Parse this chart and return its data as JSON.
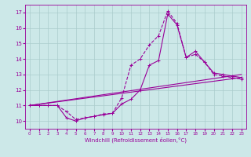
{
  "xlabel": "Windchill (Refroidissement éolien,°C)",
  "bg_color": "#cce8e8",
  "grid_color": "#aacccc",
  "line_color": "#990099",
  "xlim": [
    -0.5,
    23.5
  ],
  "ylim": [
    9.5,
    17.5
  ],
  "xticks": [
    0,
    1,
    2,
    3,
    4,
    5,
    6,
    7,
    8,
    9,
    10,
    11,
    12,
    13,
    14,
    15,
    16,
    17,
    18,
    19,
    20,
    21,
    22,
    23
  ],
  "yticks": [
    10,
    11,
    12,
    13,
    14,
    15,
    16,
    17
  ],
  "line1_x": [
    0,
    1,
    2,
    3,
    4,
    5,
    6,
    7,
    8,
    9,
    10,
    11,
    12,
    13,
    14,
    15,
    16,
    17,
    18,
    19,
    20,
    21,
    22,
    23
  ],
  "line1_y": [
    11.0,
    11.0,
    11.0,
    11.0,
    10.2,
    10.0,
    10.2,
    10.3,
    10.4,
    10.5,
    11.1,
    11.4,
    12.0,
    13.6,
    13.9,
    16.9,
    16.2,
    14.1,
    14.5,
    13.8,
    13.1,
    13.0,
    12.9,
    12.8
  ],
  "line2_x": [
    0,
    1,
    2,
    3,
    4,
    5,
    6,
    7,
    8,
    9,
    10,
    11,
    12,
    13,
    14,
    15,
    16,
    17,
    18,
    19,
    20,
    21,
    22,
    23
  ],
  "line2_y": [
    11.0,
    11.0,
    11.0,
    11.0,
    10.6,
    10.1,
    10.2,
    10.3,
    10.45,
    10.5,
    11.5,
    13.6,
    14.0,
    14.9,
    15.5,
    17.1,
    16.3,
    14.1,
    14.3,
    13.8,
    13.0,
    12.9,
    12.8,
    12.7
  ],
  "line3_x": [
    0,
    23
  ],
  "line3_y": [
    11.0,
    13.0
  ],
  "line4_x": [
    0,
    23
  ],
  "line4_y": [
    11.0,
    12.8
  ]
}
